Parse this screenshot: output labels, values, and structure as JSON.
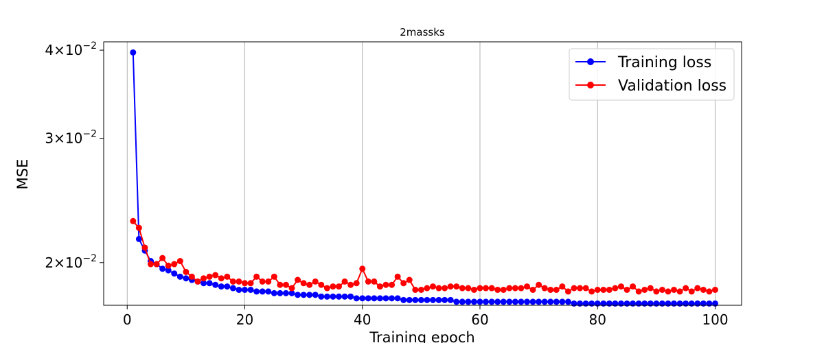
{
  "chart_data": {
    "type": "line",
    "title": "2massks",
    "xlabel": "Training epoch",
    "ylabel": "MSE",
    "yscale": "log",
    "xlim": [
      -4,
      104.5
    ],
    "ylim": [
      0.0174,
      0.0411
    ],
    "x_ticks": [
      0,
      20,
      40,
      60,
      80,
      100
    ],
    "x_tick_labels": [
      "0",
      "20",
      "40",
      "60",
      "80",
      "100"
    ],
    "y_ticks": [
      0.02,
      0.03,
      0.04
    ],
    "y_tick_labels": [
      {
        "mantissa": "2",
        "base": "10",
        "exp": "−2"
      },
      {
        "mantissa": "3",
        "base": "10",
        "exp": "−2"
      },
      {
        "mantissa": "4",
        "base": "10",
        "exp": "−2"
      }
    ],
    "grid": "vertical",
    "legend_position": "top-right",
    "x": [
      1,
      2,
      3,
      4,
      5,
      6,
      7,
      8,
      9,
      10,
      11,
      12,
      13,
      14,
      15,
      16,
      17,
      18,
      19,
      20,
      21,
      22,
      23,
      24,
      25,
      26,
      27,
      28,
      29,
      30,
      31,
      32,
      33,
      34,
      35,
      36,
      37,
      38,
      39,
      40,
      41,
      42,
      43,
      44,
      45,
      46,
      47,
      48,
      49,
      50,
      51,
      52,
      53,
      54,
      55,
      56,
      57,
      58,
      59,
      60,
      61,
      62,
      63,
      64,
      65,
      66,
      67,
      68,
      69,
      70,
      71,
      72,
      73,
      74,
      75,
      76,
      77,
      78,
      79,
      80,
      81,
      82,
      83,
      84,
      85,
      86,
      87,
      88,
      89,
      90,
      91,
      92,
      93,
      94,
      95,
      96,
      97,
      98,
      99,
      100
    ],
    "series": [
      {
        "name": "Training loss",
        "color": "#0000ff",
        "values": [
          0.0397,
          0.0216,
          0.0208,
          0.0201,
          0.0199,
          0.0196,
          0.0195,
          0.0193,
          0.0191,
          0.019,
          0.0189,
          0.0188,
          0.0187,
          0.0187,
          0.0186,
          0.0185,
          0.0185,
          0.0184,
          0.0183,
          0.0183,
          0.0183,
          0.0182,
          0.0182,
          0.0182,
          0.0181,
          0.0181,
          0.0181,
          0.0181,
          0.018,
          0.018,
          0.018,
          0.018,
          0.0179,
          0.0179,
          0.0179,
          0.0179,
          0.0179,
          0.0179,
          0.0178,
          0.0178,
          0.0178,
          0.0178,
          0.0178,
          0.0178,
          0.0178,
          0.0178,
          0.0177,
          0.0177,
          0.0177,
          0.0177,
          0.0177,
          0.0177,
          0.0177,
          0.0177,
          0.0177,
          0.0176,
          0.0176,
          0.0176,
          0.0176,
          0.0176,
          0.0176,
          0.0176,
          0.0176,
          0.0176,
          0.0176,
          0.0176,
          0.0176,
          0.0176,
          0.0176,
          0.0176,
          0.0176,
          0.0176,
          0.0176,
          0.0176,
          0.0176,
          0.0175,
          0.0175,
          0.0175,
          0.0175,
          0.0175,
          0.0175,
          0.0175,
          0.0175,
          0.0175,
          0.0175,
          0.0175,
          0.0175,
          0.0175,
          0.0175,
          0.0175,
          0.0175,
          0.0175,
          0.0175,
          0.0175,
          0.0175,
          0.0175,
          0.0175,
          0.0175,
          0.0175,
          0.0175
        ]
      },
      {
        "name": "Validation loss",
        "color": "#ff0000",
        "values": [
          0.0229,
          0.0224,
          0.021,
          0.0199,
          0.0199,
          0.0203,
          0.0198,
          0.0199,
          0.0201,
          0.0194,
          0.0191,
          0.0188,
          0.019,
          0.0191,
          0.0192,
          0.019,
          0.0191,
          0.0188,
          0.0188,
          0.0187,
          0.0187,
          0.0191,
          0.0188,
          0.0188,
          0.0191,
          0.0186,
          0.0186,
          0.0184,
          0.0189,
          0.0187,
          0.0186,
          0.0188,
          0.0186,
          0.0184,
          0.0185,
          0.0185,
          0.0188,
          0.0186,
          0.0187,
          0.0196,
          0.0188,
          0.0188,
          0.0185,
          0.0186,
          0.0186,
          0.0191,
          0.0187,
          0.0189,
          0.0183,
          0.0183,
          0.0184,
          0.0185,
          0.0184,
          0.0184,
          0.0185,
          0.0185,
          0.0184,
          0.0184,
          0.0183,
          0.0184,
          0.0184,
          0.0184,
          0.0183,
          0.0183,
          0.0184,
          0.0184,
          0.0184,
          0.0185,
          0.0183,
          0.0186,
          0.0184,
          0.0183,
          0.0183,
          0.0185,
          0.0182,
          0.0184,
          0.0184,
          0.0184,
          0.0182,
          0.0183,
          0.0183,
          0.0183,
          0.0184,
          0.0185,
          0.0183,
          0.0185,
          0.0182,
          0.0183,
          0.0184,
          0.0182,
          0.0183,
          0.0182,
          0.0183,
          0.0182,
          0.0184,
          0.0182,
          0.0184,
          0.0183,
          0.0182,
          0.0183
        ]
      }
    ]
  }
}
